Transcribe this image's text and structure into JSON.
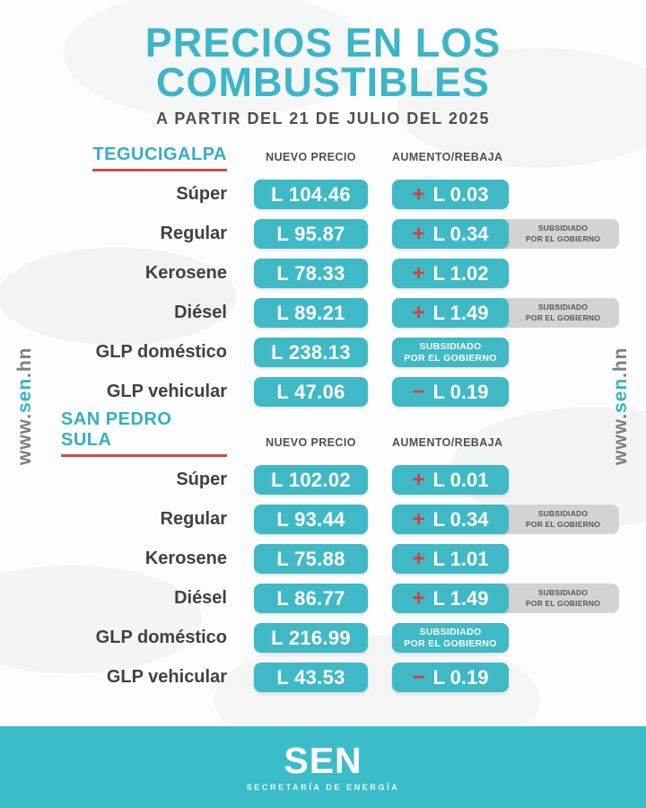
{
  "header": {
    "title_line1": "PRECIOS EN LOS",
    "title_line2": "COMBUSTIBLES",
    "subtitle": "A PARTIR DEL 21 DE JULIO DEL 2025"
  },
  "columns": {
    "price": "NUEVO PRECIO",
    "change": "AUMENTO/REBAJA"
  },
  "labels": {
    "subsidy_line1": "SUBSIDIADO",
    "subsidy_line2": "POR EL GOBIERNO"
  },
  "watermark": {
    "www": "www.",
    "sen": "sen",
    "hn": ".hn"
  },
  "footer": {
    "logo": "SEN",
    "tagline": "SECRETARÍA DE ENERGÍA"
  },
  "colors": {
    "teal": "#3fb9c5",
    "title_teal": "#3db5c8",
    "red": "#d4403f",
    "underline_red": "#d44a4a",
    "tag_gray": "#d3d3d3",
    "dark_text": "#3c4348",
    "footer_teal": "#3bbcc9"
  },
  "currency": "L",
  "sections": [
    {
      "city": "TEGUCIGALPA",
      "rows": [
        {
          "fuel": "Súper",
          "price": "L 104.46",
          "sign": "+",
          "change": "L 0.03",
          "subsidized": false
        },
        {
          "fuel": "Regular",
          "price": "L 95.87",
          "sign": "+",
          "change": "L 0.34",
          "subsidized": true
        },
        {
          "fuel": "Kerosene",
          "price": "L 78.33",
          "sign": "+",
          "change": "L 1.02",
          "subsidized": false
        },
        {
          "fuel": "Diésel",
          "price": "L 89.21",
          "sign": "+",
          "change": "L 1.49",
          "subsidized": true
        },
        {
          "fuel": "GLP doméstico",
          "price": "L 238.13",
          "subsidy_box": true
        },
        {
          "fuel": "GLP vehicular",
          "price": "L 47.06",
          "sign": "−",
          "change": "L 0.19",
          "subsidized": false
        }
      ]
    },
    {
      "city": "SAN PEDRO SULA",
      "rows": [
        {
          "fuel": "Súper",
          "price": "L 102.02",
          "sign": "+",
          "change": "L 0.01",
          "subsidized": false
        },
        {
          "fuel": "Regular",
          "price": "L 93.44",
          "sign": "+",
          "change": "L 0.34",
          "subsidized": true
        },
        {
          "fuel": "Kerosene",
          "price": "L 75.88",
          "sign": "+",
          "change": "L 1.01",
          "subsidized": false
        },
        {
          "fuel": "Diésel",
          "price": "L 86.77",
          "sign": "+",
          "change": "L 1.49",
          "subsidized": true
        },
        {
          "fuel": "GLP doméstico",
          "price": "L 216.99",
          "subsidy_box": true
        },
        {
          "fuel": "GLP vehicular",
          "price": "L 43.53",
          "sign": "−",
          "change": "L 0.19",
          "subsidized": false
        }
      ]
    }
  ]
}
